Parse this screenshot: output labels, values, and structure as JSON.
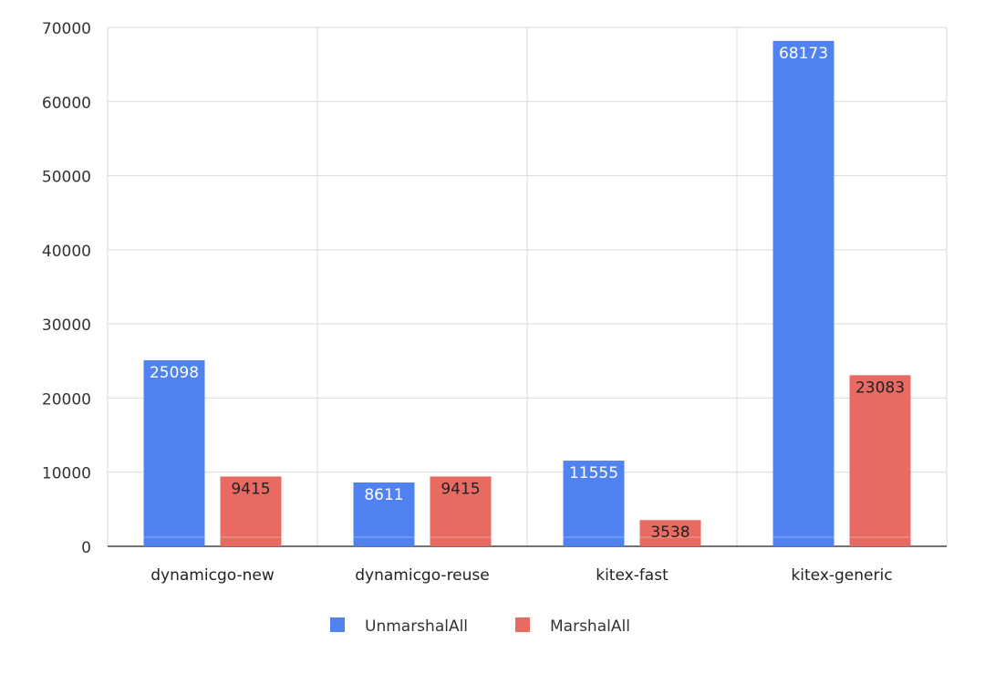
{
  "chart_data": {
    "type": "bar",
    "title": "",
    "xlabel": "",
    "ylabel": "",
    "categories": [
      "dynamicgo-new",
      "dynamicgo-reuse",
      "kitex-fast",
      "kitex-generic"
    ],
    "series": [
      {
        "name": "UnmarshalAll",
        "color": "#5083ef",
        "label_color": "#ffffff",
        "values": [
          25098,
          8611,
          11555,
          68173
        ]
      },
      {
        "name": "MarshalAll",
        "color": "#e86b63",
        "label_color": "#222222",
        "values": [
          9415,
          9415,
          3538,
          23083
        ]
      }
    ],
    "ylim": [
      0,
      70000
    ],
    "yticks": [
      "0",
      "10000",
      "20000",
      "30000",
      "40000",
      "50000",
      "60000",
      "70000"
    ],
    "grid": true,
    "legend": "bottom-center",
    "data_labels": true
  }
}
